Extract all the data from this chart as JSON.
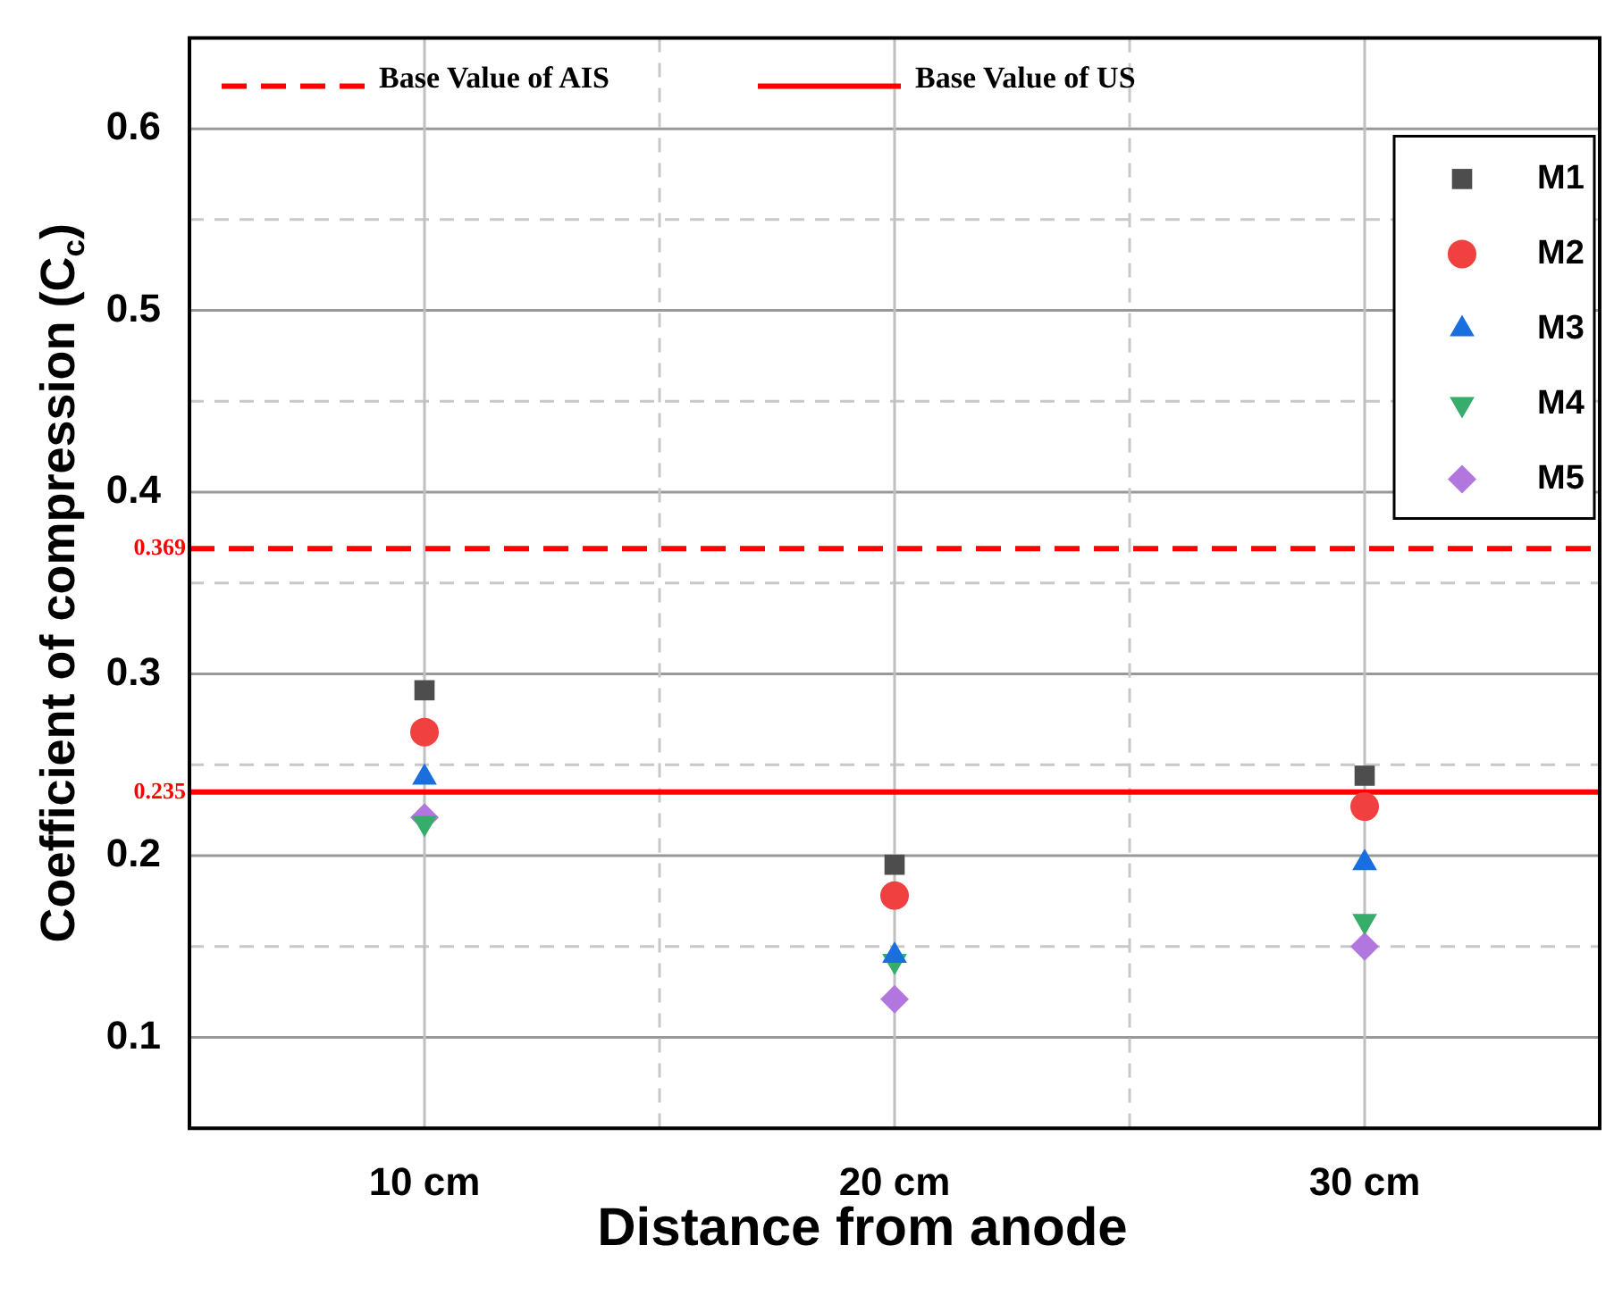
{
  "chart_data": {
    "type": "scatter",
    "xlabel": "Distance from anode",
    "ylabel": "Coefficient of compression (C$_{c}$)",
    "categories": [
      "10 cm",
      "20 cm",
      "30 cm"
    ],
    "series": [
      {
        "name": "M1",
        "color": "#4d4d4d",
        "marker": "square",
        "values": [
          0.291,
          0.195,
          0.244
        ]
      },
      {
        "name": "M2",
        "color": "#f04040",
        "marker": "circle",
        "values": [
          0.268,
          0.178,
          0.227
        ]
      },
      {
        "name": "M3",
        "color": "#1a6fdf",
        "marker": "triangle",
        "values": [
          0.243,
          0.145,
          0.196
        ]
      },
      {
        "name": "M4",
        "color": "#37ad6b",
        "marker": "triangle-down",
        "values": [
          0.218,
          0.142,
          0.164
        ]
      },
      {
        "name": "M5",
        "color": "#b177de",
        "marker": "diamond",
        "values": [
          0.221,
          0.121,
          0.15
        ]
      }
    ],
    "ylim": [
      0.05,
      0.65
    ],
    "yticks": [
      0.1,
      {
        "value": 0.15,
        "label": null
      },
      0.2,
      {
        "value": 0.25,
        "label": null
      },
      0.3,
      {
        "value": 0.35,
        "label": null
      },
      0.4,
      {
        "value": 0.45,
        "label": null
      },
      0.5,
      {
        "value": 0.55,
        "label": null
      },
      0.6
    ],
    "ref_lines": [
      {
        "axis": "y",
        "value": 0.369,
        "label": "Base Value of AIS",
        "color": "#ff0000",
        "line_style": "dashed"
      },
      {
        "axis": "y",
        "value": 0.235,
        "label": "Base Value of US",
        "color": "#ff0000",
        "line_style": "solid"
      }
    ],
    "annotations": [
      "0.369",
      "0.235"
    ],
    "grid": true,
    "legend": "top right"
  }
}
